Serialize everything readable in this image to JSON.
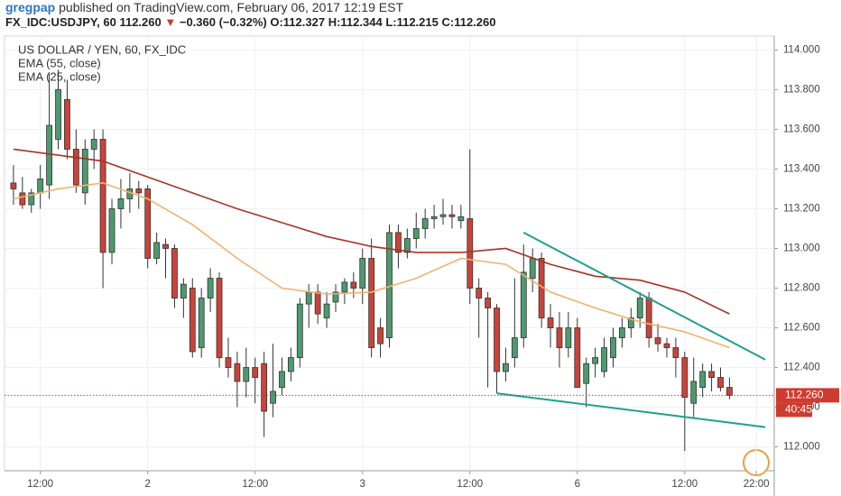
{
  "header": {
    "author": "gregpap",
    "published": "published on TradingView.com, February 06, 2017 12:19 EST"
  },
  "symbol_bar": {
    "symbol": "FX_IDC:USDJPY, 60",
    "last": "112.260",
    "change_arrow": "▼",
    "change": "−0.360 (−0.32%)",
    "open": "O:112.327",
    "high": "H:112.344",
    "low": "L:112.215",
    "close": "C:112.260"
  },
  "chart_data": {
    "type": "candlestick",
    "title": "US DOLLAR / YEN, 60, FX_IDC",
    "up_color": "#4e9a6f",
    "down_color": "#c9433a",
    "open": [
      113.33,
      113.28,
      113.22,
      113.28,
      113.32,
      113.55,
      113.75,
      113.5,
      113.28,
      113.5,
      113.55,
      112.98,
      113.2,
      113.25,
      113.3,
      113.3,
      112.95,
      113.02,
      113.0,
      112.75,
      112.8,
      112.5,
      112.75,
      112.85,
      112.45,
      112.42,
      112.33,
      112.4,
      112.42,
      112.22,
      112.3,
      112.38,
      112.45,
      112.72,
      112.78,
      112.65,
      112.73,
      112.78,
      112.83,
      112.8,
      112.95,
      112.6,
      112.55,
      113.08,
      112.98,
      113.05,
      113.1,
      113.15,
      113.16,
      113.17,
      113.14,
      113.15,
      112.8,
      112.75,
      112.7,
      112.38,
      112.45,
      112.55,
      112.85,
      112.95,
      112.65,
      112.6,
      112.5,
      112.6,
      112.32,
      112.42,
      112.38,
      112.45,
      112.55,
      112.6,
      112.65,
      112.75,
      112.55,
      112.52,
      112.5,
      112.45,
      112.22,
      112.3,
      112.38,
      112.35,
      112.3
    ],
    "high": [
      113.42,
      113.36,
      113.3,
      113.42,
      113.88,
      113.9,
      113.85,
      113.6,
      113.55,
      113.6,
      113.6,
      113.25,
      113.35,
      113.38,
      113.34,
      113.32,
      113.08,
      113.05,
      113.02,
      112.85,
      112.85,
      112.8,
      112.9,
      112.88,
      112.55,
      112.48,
      112.5,
      112.45,
      112.48,
      112.52,
      112.45,
      112.5,
      112.75,
      112.82,
      112.82,
      112.78,
      112.82,
      112.85,
      112.88,
      113.0,
      113.05,
      112.65,
      113.12,
      113.12,
      113.1,
      113.18,
      113.2,
      113.22,
      113.25,
      113.22,
      113.22,
      113.5,
      112.85,
      112.78,
      112.72,
      112.5,
      112.85,
      113.02,
      113.0,
      112.98,
      112.72,
      112.68,
      112.68,
      112.65,
      112.45,
      112.5,
      112.55,
      112.6,
      112.65,
      112.7,
      112.78,
      112.78,
      112.62,
      112.55,
      112.55,
      112.48,
      112.45,
      112.42,
      112.42,
      112.4,
      112.35
    ],
    "low": [
      113.22,
      113.2,
      113.18,
      113.2,
      113.25,
      113.5,
      113.45,
      113.28,
      113.22,
      113.4,
      112.8,
      112.92,
      113.1,
      113.18,
      113.2,
      112.9,
      112.92,
      112.85,
      112.7,
      112.65,
      112.45,
      112.45,
      112.68,
      112.4,
      112.35,
      112.2,
      112.25,
      112.22,
      112.05,
      112.15,
      112.26,
      112.33,
      112.4,
      112.6,
      112.62,
      112.6,
      112.68,
      112.72,
      112.75,
      112.72,
      112.45,
      112.45,
      112.5,
      112.9,
      112.95,
      113.0,
      113.05,
      113.1,
      113.12,
      113.1,
      113.1,
      112.72,
      112.55,
      112.3,
      112.27,
      112.33,
      112.4,
      112.5,
      112.78,
      112.6,
      112.5,
      112.4,
      112.45,
      112.3,
      112.2,
      112.35,
      112.35,
      112.4,
      112.5,
      112.55,
      112.6,
      112.5,
      112.48,
      112.45,
      112.35,
      111.98,
      112.15,
      112.25,
      112.28,
      112.28,
      112.24
    ],
    "close": [
      113.3,
      113.22,
      113.28,
      113.35,
      113.62,
      113.8,
      113.5,
      113.32,
      113.5,
      113.55,
      112.98,
      113.2,
      113.25,
      113.3,
      113.28,
      112.95,
      113.03,
      113.0,
      112.75,
      112.82,
      112.48,
      112.75,
      112.85,
      112.45,
      112.4,
      112.33,
      112.4,
      112.35,
      112.18,
      112.28,
      112.38,
      112.45,
      112.72,
      112.78,
      112.67,
      112.72,
      112.78,
      112.83,
      112.8,
      112.95,
      112.5,
      112.52,
      113.08,
      112.98,
      113.05,
      113.1,
      113.15,
      113.16,
      113.17,
      113.16,
      113.16,
      112.8,
      112.75,
      112.7,
      112.38,
      112.42,
      112.55,
      112.88,
      112.95,
      112.65,
      112.6,
      112.5,
      112.6,
      112.3,
      112.42,
      112.45,
      112.5,
      112.55,
      112.6,
      112.65,
      112.75,
      112.55,
      112.52,
      112.5,
      112.45,
      112.25,
      112.33,
      112.38,
      112.35,
      112.3,
      112.26
    ],
    "series": [
      {
        "name": "EMA (55, close)",
        "color": "#a93226",
        "x": [
          0,
          5,
          10,
          15,
          20,
          25,
          30,
          35,
          40,
          45,
          50,
          55,
          60,
          65,
          70,
          75,
          80
        ],
        "values": [
          113.5,
          113.47,
          113.44,
          113.36,
          113.28,
          113.2,
          113.13,
          113.06,
          113.01,
          112.98,
          112.98,
          113.0,
          112.92,
          112.86,
          112.84,
          112.78,
          112.67
        ]
      },
      {
        "name": "EMA (25, close)",
        "color": "#f2b26e",
        "x": [
          0,
          5,
          10,
          15,
          20,
          25,
          30,
          35,
          40,
          45,
          50,
          55,
          60,
          65,
          70,
          75,
          80
        ],
        "values": [
          113.25,
          113.3,
          113.33,
          113.25,
          113.12,
          112.95,
          112.8,
          112.77,
          112.78,
          112.85,
          112.95,
          112.92,
          112.78,
          112.7,
          112.63,
          112.58,
          112.5
        ]
      }
    ],
    "trendlines": [
      {
        "color": "#1fa08a",
        "x": [
          57,
          84
        ],
        "y": [
          113.08,
          112.44
        ]
      },
      {
        "color": "#1fa08a",
        "x": [
          54,
          84
        ],
        "y": [
          112.27,
          112.1
        ]
      }
    ],
    "last_price": 112.26,
    "last_price_label": "112.260",
    "countdown": "40:45",
    "last_price_color": "#d03b2f",
    "xlim": [
      -1,
      85
    ],
    "xticks": [
      {
        "value": 3,
        "label": "12:00"
      },
      {
        "value": 15,
        "label": "2"
      },
      {
        "value": 27,
        "label": "12:00"
      },
      {
        "value": 39,
        "label": "3"
      },
      {
        "value": 51,
        "label": "12:00"
      },
      {
        "value": 63,
        "label": "6"
      },
      {
        "value": 75,
        "label": "12:00"
      },
      {
        "value": 83,
        "label": "22:00"
      }
    ],
    "ylim": [
      111.88,
      114.07
    ],
    "yticks": [
      {
        "value": 112,
        "label": "112.000"
      },
      {
        "value": 112.2,
        "label": "112.200"
      },
      {
        "value": 112.4,
        "label": "112.400"
      },
      {
        "value": 112.6,
        "label": "112.600"
      },
      {
        "value": 112.8,
        "label": "112.800"
      },
      {
        "value": 113,
        "label": "113.000"
      },
      {
        "value": 113.2,
        "label": "113.200"
      },
      {
        "value": 113.4,
        "label": "113.400"
      },
      {
        "value": 113.6,
        "label": "113.600"
      },
      {
        "value": 113.8,
        "label": "113.800"
      },
      {
        "value": 114,
        "label": "114.000"
      }
    ],
    "grid": true
  }
}
